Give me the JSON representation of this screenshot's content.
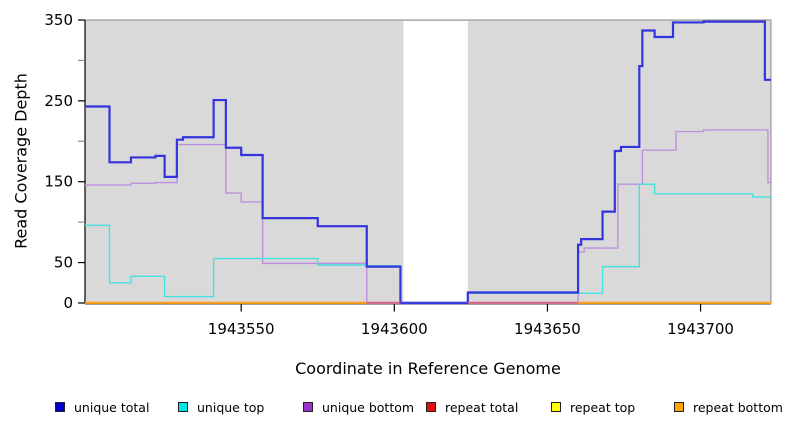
{
  "figure": {
    "y_axis": {
      "title": "Read Coverage Depth"
    },
    "x_axis": {
      "title": "Coordinate in Reference Genome"
    },
    "panel_color": "#d9d9d9",
    "axis_color": "#000000",
    "minor_tick_color": "#909090"
  },
  "legend": {
    "items": [
      {
        "label": "unique total",
        "color": "#0000cc"
      },
      {
        "label": "unique top",
        "color": "#00e6e6"
      },
      {
        "label": "unique bottom",
        "color": "#9933cc"
      },
      {
        "label": "repeat total",
        "color": "#e01010"
      },
      {
        "label": "repeat top",
        "color": "#ffff00"
      },
      {
        "label": "repeat bottom",
        "color": "#ffa500"
      }
    ]
  },
  "chart_data": {
    "type": "line",
    "step": true,
    "title": "",
    "xlabel": "Coordinate in Reference Genome",
    "ylabel": "Read Coverage Depth",
    "xlim": [
      1943499,
      1943723
    ],
    "ylim": [
      0,
      350
    ],
    "x_ticks": [
      1943550,
      1943600,
      1943650,
      1943700
    ],
    "y_ticks": [
      0,
      50,
      100,
      150,
      200,
      250,
      300,
      350
    ],
    "y_ticks_labeled": [
      0,
      50,
      150,
      250,
      350
    ],
    "grid": false,
    "legend_position": "bottom",
    "gap_region": {
      "from": 1943603,
      "to": 1943624,
      "color": "#ffffff"
    },
    "series": [
      {
        "name": "repeat total",
        "color": "#dd1c1c",
        "line_width": 1.2,
        "points": [
          [
            1943499,
            0
          ]
        ]
      },
      {
        "name": "repeat top",
        "color": "#f5f500",
        "line_width": 1.2,
        "points": [
          [
            1943499,
            0
          ]
        ]
      },
      {
        "name": "repeat bottom",
        "color": "#ff9f1a",
        "line_width": 1.8,
        "points": [
          [
            1943499,
            0
          ]
        ]
      },
      {
        "name": "unique bottom",
        "color": "#bf8fdf",
        "line_width": 1.4,
        "points": [
          [
            1943499,
            146
          ],
          [
            1943514,
            148
          ],
          [
            1943522,
            149
          ],
          [
            1943529,
            196
          ],
          [
            1943545,
            136
          ],
          [
            1943550,
            125
          ],
          [
            1943557,
            49
          ],
          [
            1943591,
            0
          ],
          [
            1943660,
            63
          ],
          [
            1943662,
            68
          ],
          [
            1943673,
            147
          ],
          [
            1943681,
            189
          ],
          [
            1943692,
            212
          ],
          [
            1943701,
            214
          ],
          [
            1943722,
            149
          ]
        ]
      },
      {
        "name": "unique top",
        "color": "#45e0e0",
        "line_width": 1.4,
        "points": [
          [
            1943499,
            96
          ],
          [
            1943507,
            25
          ],
          [
            1943514,
            33
          ],
          [
            1943525,
            8
          ],
          [
            1943541,
            55
          ],
          [
            1943575,
            47
          ],
          [
            1943591,
            46
          ],
          [
            1943602,
            0
          ],
          [
            1943624,
            12
          ],
          [
            1943668,
            45
          ],
          [
            1943680,
            147
          ],
          [
            1943685,
            135
          ],
          [
            1943717,
            131
          ]
        ]
      },
      {
        "name": "unique total",
        "color": "#3434dd",
        "line_width": 2.2,
        "points": [
          [
            1943499,
            243
          ],
          [
            1943507,
            174
          ],
          [
            1943514,
            180
          ],
          [
            1943522,
            182
          ],
          [
            1943525,
            156
          ],
          [
            1943529,
            202
          ],
          [
            1943531,
            205
          ],
          [
            1943541,
            251
          ],
          [
            1943545,
            192
          ],
          [
            1943550,
            183
          ],
          [
            1943557,
            105
          ],
          [
            1943575,
            95
          ],
          [
            1943591,
            45
          ],
          [
            1943602,
            0
          ],
          [
            1943624,
            13
          ],
          [
            1943660,
            72
          ],
          [
            1943661,
            79
          ],
          [
            1943668,
            113
          ],
          [
            1943672,
            188
          ],
          [
            1943674,
            193
          ],
          [
            1943680,
            293
          ],
          [
            1943681,
            337
          ],
          [
            1943685,
            329
          ],
          [
            1943691,
            347
          ],
          [
            1943701,
            348
          ],
          [
            1943721,
            276
          ]
        ]
      }
    ],
    "baseline_overlays": [
      {
        "from": 1943499,
        "to": 1943591,
        "color": "#ff9f1a"
      },
      {
        "from": 1943591,
        "to": 1943602,
        "color": "#d4608c"
      },
      {
        "from": 1943602,
        "to": 1943624,
        "color": "#3d3de0"
      },
      {
        "from": 1943624,
        "to": 1943660,
        "color": "#d4608c"
      },
      {
        "from": 1943660,
        "to": 1943723,
        "color": "#ff9f1a"
      }
    ]
  }
}
